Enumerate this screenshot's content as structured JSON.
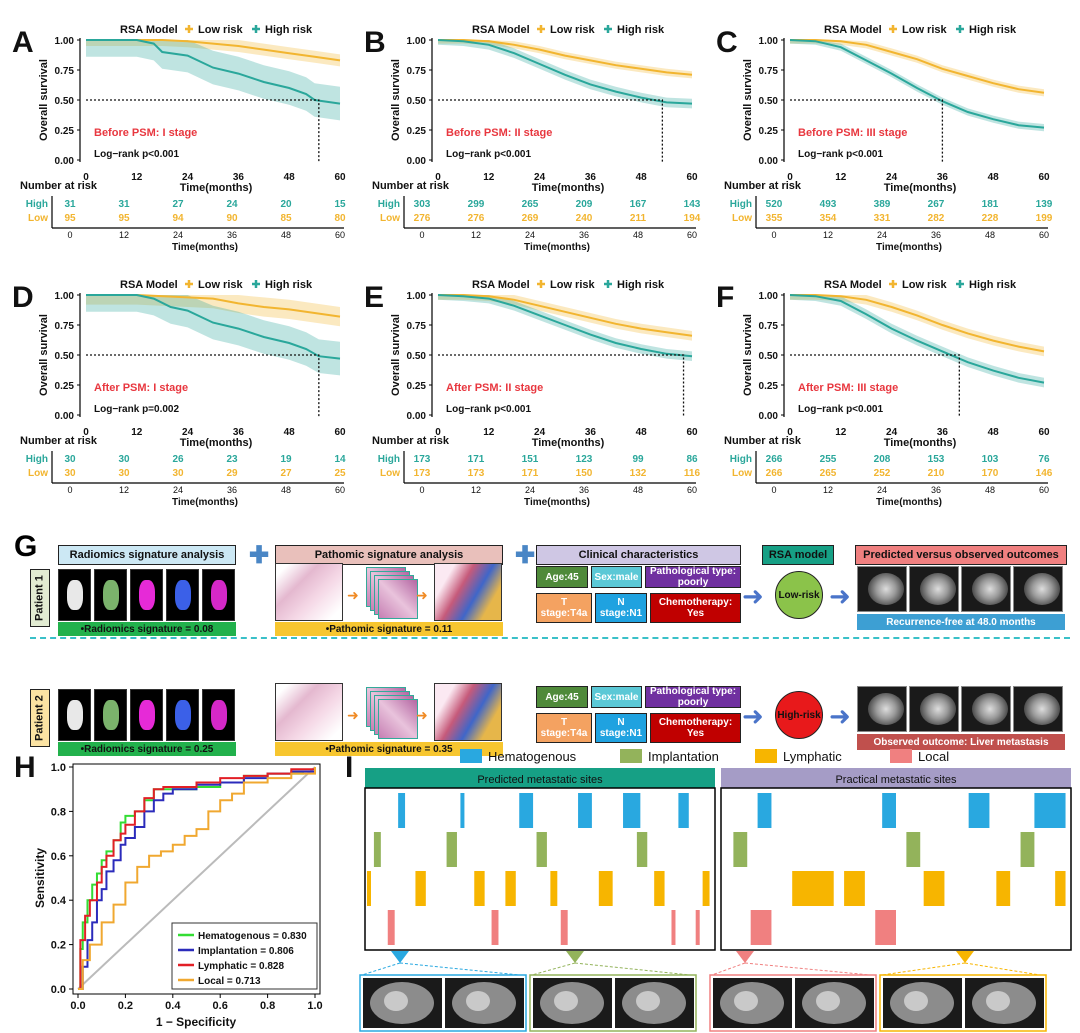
{
  "km_panels": [
    {
      "letter": "A",
      "annotation": "Before PSM: I stage",
      "pvalue": "Log−rank p<0.001",
      "median_x": 55,
      "high_nrisk": [
        "31",
        "31",
        "27",
        "24",
        "20",
        "15"
      ],
      "low_nrisk": [
        "95",
        "95",
        "94",
        "90",
        "85",
        "80"
      ],
      "low_curve": [
        [
          0,
          1.0
        ],
        [
          12,
          1.0
        ],
        [
          18,
          1.0
        ],
        [
          24,
          0.99
        ],
        [
          30,
          0.97
        ],
        [
          36,
          0.95
        ],
        [
          42,
          0.92
        ],
        [
          48,
          0.89
        ],
        [
          54,
          0.86
        ],
        [
          60,
          0.83
        ]
      ],
      "high_curve": [
        [
          0,
          1.0
        ],
        [
          12,
          1.0
        ],
        [
          16,
          0.97
        ],
        [
          18,
          0.9
        ],
        [
          24,
          0.87
        ],
        [
          30,
          0.77
        ],
        [
          36,
          0.72
        ],
        [
          42,
          0.65
        ],
        [
          48,
          0.6
        ],
        [
          52,
          0.55
        ],
        [
          54,
          0.5
        ],
        [
          60,
          0.47
        ]
      ],
      "low_band": 0.05,
      "high_band": 0.14
    },
    {
      "letter": "B",
      "annotation": "Before PSM: II stage",
      "pvalue": "Log−rank p<0.001",
      "median_x": 53,
      "high_nrisk": [
        "303",
        "299",
        "265",
        "209",
        "167",
        "143"
      ],
      "low_nrisk": [
        "276",
        "276",
        "269",
        "240",
        "211",
        "194"
      ],
      "low_curve": [
        [
          0,
          1.0
        ],
        [
          6,
          1.0
        ],
        [
          12,
          0.99
        ],
        [
          18,
          0.96
        ],
        [
          24,
          0.92
        ],
        [
          30,
          0.87
        ],
        [
          36,
          0.83
        ],
        [
          42,
          0.79
        ],
        [
          48,
          0.76
        ],
        [
          54,
          0.73
        ],
        [
          60,
          0.71
        ]
      ],
      "high_curve": [
        [
          0,
          1.0
        ],
        [
          6,
          0.99
        ],
        [
          12,
          0.96
        ],
        [
          18,
          0.89
        ],
        [
          24,
          0.8
        ],
        [
          30,
          0.71
        ],
        [
          36,
          0.63
        ],
        [
          42,
          0.57
        ],
        [
          48,
          0.52
        ],
        [
          54,
          0.48
        ],
        [
          60,
          0.47
        ]
      ],
      "low_band": 0.03,
      "high_band": 0.04
    },
    {
      "letter": "C",
      "annotation": "Before PSM: III stage",
      "pvalue": "Log−rank p<0.001",
      "median_x": 36,
      "high_nrisk": [
        "520",
        "493",
        "389",
        "267",
        "181",
        "139"
      ],
      "low_nrisk": [
        "355",
        "354",
        "331",
        "282",
        "228",
        "199"
      ],
      "low_curve": [
        [
          0,
          1.0
        ],
        [
          6,
          1.0
        ],
        [
          12,
          0.99
        ],
        [
          18,
          0.96
        ],
        [
          24,
          0.9
        ],
        [
          30,
          0.84
        ],
        [
          36,
          0.76
        ],
        [
          42,
          0.7
        ],
        [
          48,
          0.64
        ],
        [
          54,
          0.59
        ],
        [
          60,
          0.56
        ]
      ],
      "high_curve": [
        [
          0,
          1.0
        ],
        [
          6,
          0.99
        ],
        [
          12,
          0.94
        ],
        [
          18,
          0.83
        ],
        [
          24,
          0.72
        ],
        [
          30,
          0.6
        ],
        [
          36,
          0.49
        ],
        [
          42,
          0.4
        ],
        [
          48,
          0.34
        ],
        [
          54,
          0.29
        ],
        [
          60,
          0.27
        ]
      ],
      "low_band": 0.03,
      "high_band": 0.03
    },
    {
      "letter": "D",
      "annotation": "After PSM: I stage",
      "pvalue": "Log−rank p=0.002",
      "median_x": 55,
      "high_nrisk": [
        "30",
        "30",
        "26",
        "23",
        "19",
        "14"
      ],
      "low_nrisk": [
        "30",
        "30",
        "30",
        "29",
        "27",
        "25"
      ],
      "low_curve": [
        [
          0,
          1.0
        ],
        [
          12,
          1.0
        ],
        [
          24,
          0.98
        ],
        [
          30,
          0.97
        ],
        [
          36,
          0.93
        ],
        [
          42,
          0.9
        ],
        [
          48,
          0.88
        ],
        [
          54,
          0.85
        ],
        [
          60,
          0.82
        ]
      ],
      "high_curve": [
        [
          0,
          1.0
        ],
        [
          12,
          1.0
        ],
        [
          16,
          0.97
        ],
        [
          20,
          0.9
        ],
        [
          24,
          0.87
        ],
        [
          30,
          0.77
        ],
        [
          36,
          0.72
        ],
        [
          42,
          0.65
        ],
        [
          48,
          0.6
        ],
        [
          52,
          0.55
        ],
        [
          55,
          0.49
        ],
        [
          60,
          0.47
        ]
      ],
      "low_band": 0.08,
      "high_band": 0.14
    },
    {
      "letter": "E",
      "annotation": "After PSM: II stage",
      "pvalue": "Log−rank p<0.001",
      "median_x": 58,
      "high_nrisk": [
        "173",
        "171",
        "151",
        "123",
        "99",
        "86"
      ],
      "low_nrisk": [
        "173",
        "173",
        "171",
        "150",
        "132",
        "116"
      ],
      "low_curve": [
        [
          0,
          1.0
        ],
        [
          6,
          1.0
        ],
        [
          12,
          0.99
        ],
        [
          18,
          0.96
        ],
        [
          24,
          0.91
        ],
        [
          30,
          0.86
        ],
        [
          36,
          0.81
        ],
        [
          42,
          0.76
        ],
        [
          48,
          0.72
        ],
        [
          54,
          0.69
        ],
        [
          60,
          0.66
        ]
      ],
      "high_curve": [
        [
          0,
          1.0
        ],
        [
          6,
          0.99
        ],
        [
          12,
          0.97
        ],
        [
          18,
          0.91
        ],
        [
          24,
          0.83
        ],
        [
          30,
          0.75
        ],
        [
          36,
          0.67
        ],
        [
          42,
          0.6
        ],
        [
          48,
          0.55
        ],
        [
          54,
          0.51
        ],
        [
          60,
          0.49
        ]
      ],
      "low_band": 0.04,
      "high_band": 0.04
    },
    {
      "letter": "F",
      "annotation": "After PSM: III stage",
      "pvalue": "Log−rank p<0.001",
      "median_x": 40,
      "high_nrisk": [
        "266",
        "255",
        "208",
        "153",
        "103",
        "76"
      ],
      "low_nrisk": [
        "266",
        "265",
        "252",
        "210",
        "170",
        "146"
      ],
      "low_curve": [
        [
          0,
          1.0
        ],
        [
          6,
          1.0
        ],
        [
          12,
          0.99
        ],
        [
          18,
          0.96
        ],
        [
          24,
          0.9
        ],
        [
          30,
          0.83
        ],
        [
          36,
          0.75
        ],
        [
          42,
          0.68
        ],
        [
          48,
          0.62
        ],
        [
          54,
          0.57
        ],
        [
          60,
          0.53
        ]
      ],
      "high_curve": [
        [
          0,
          1.0
        ],
        [
          6,
          0.99
        ],
        [
          12,
          0.95
        ],
        [
          18,
          0.84
        ],
        [
          24,
          0.72
        ],
        [
          30,
          0.62
        ],
        [
          36,
          0.53
        ],
        [
          42,
          0.44
        ],
        [
          48,
          0.37
        ],
        [
          54,
          0.31
        ],
        [
          60,
          0.27
        ]
      ],
      "low_band": 0.04,
      "high_band": 0.04
    }
  ],
  "km_common": {
    "legend_title": "RSA Model",
    "legend_low": "Low risk",
    "legend_high": "High risk",
    "ylabel": "Overall survival",
    "xlabel": "Time(months)",
    "number_at_risk": "Number at risk",
    "high_label": "High",
    "low_label": "Low",
    "yticks": [
      "0.00",
      "0.25",
      "0.50",
      "0.75",
      "1.00"
    ],
    "xticks": [
      "0",
      "12",
      "24",
      "36",
      "48",
      "60"
    ],
    "low_color": "#f2b530",
    "high_color": "#2aa79b",
    "annot_color": "#e8373f"
  },
  "panel_g": {
    "letter": "G",
    "radiomics_title": "Radiomics signature analysis",
    "pathomics_title": "Pathomic signature analysis",
    "clinical_title": "Clinical characteristics",
    "rsa_title": "RSA model",
    "outcome_title": "Predicted versus observed outcomes",
    "plus": "✚",
    "patients": [
      {
        "label": "Patient 1",
        "radiomics": "•Radiomics signature = 0.08",
        "pathomics": "•Pathomic signature = 0.11",
        "age": "Age:45",
        "sex": "Sex:male",
        "path_type": "Pathological type: poorly",
        "t_stage": "T stage:T4a",
        "n_stage": "N stage:N1",
        "chemo": "Chemotherapy: Yes",
        "risk": "Low-risk",
        "risk_color": "#8bc34a",
        "outcome": "Recurrence-free at 48.0 months",
        "outcome_color": "#3d9fd3"
      },
      {
        "label": "Patient 2",
        "radiomics": "•Radiomics signature = 0.25",
        "pathomics": "•Pathomic signature = 0.35",
        "age": "Age:45",
        "sex": "Sex:male",
        "path_type": "Pathological type: poorly",
        "t_stage": "T stage:T4a",
        "n_stage": "N stage:N1",
        "chemo": "Chemotherapy: Yes",
        "risk": "High-risk",
        "risk_color": "#e8191b",
        "outcome": "Observed outcome: Liver metastasis",
        "outcome_color": "#c0504d"
      }
    ]
  },
  "chart_data": [
    {
      "type": "line",
      "panel": "H",
      "title": "",
      "xlabel": "1 − Specificity",
      "ylabel": "Sensitivity",
      "xlim": [
        0,
        1
      ],
      "ylim": [
        0,
        1
      ],
      "xticks": [
        "0.0",
        "0.2",
        "0.4",
        "0.6",
        "0.8",
        "1.0"
      ],
      "yticks": [
        "0.0",
        "0.2",
        "0.4",
        "0.6",
        "0.8",
        "1.0"
      ],
      "series": [
        {
          "name": "Hematogenous = 0.830",
          "color": "#33dd33",
          "x": [
            0,
            0.01,
            0.02,
            0.04,
            0.06,
            0.08,
            0.1,
            0.12,
            0.15,
            0.18,
            0.2,
            0.24,
            0.28,
            0.32,
            0.36,
            0.4,
            0.5,
            0.6,
            0.7,
            0.8,
            0.9,
            0.95,
            1
          ],
          "y": [
            0,
            0.18,
            0.3,
            0.4,
            0.47,
            0.52,
            0.58,
            0.62,
            0.67,
            0.75,
            0.78,
            0.8,
            0.85,
            0.9,
            0.9,
            0.9,
            0.91,
            0.93,
            0.96,
            0.97,
            0.97,
            0.98,
            1
          ]
        },
        {
          "name": "Implantation = 0.806",
          "color": "#2b2bbb",
          "x": [
            0,
            0.02,
            0.04,
            0.06,
            0.08,
            0.1,
            0.12,
            0.15,
            0.18,
            0.2,
            0.24,
            0.28,
            0.32,
            0.36,
            0.4,
            0.5,
            0.6,
            0.7,
            0.8,
            0.9,
            1
          ],
          "y": [
            0,
            0.1,
            0.22,
            0.3,
            0.4,
            0.45,
            0.53,
            0.58,
            0.65,
            0.68,
            0.73,
            0.8,
            0.85,
            0.88,
            0.9,
            0.92,
            0.93,
            0.95,
            0.97,
            0.98,
            1
          ]
        },
        {
          "name": "Lymphatic = 0.828",
          "color": "#e21f26",
          "x": [
            0,
            0.01,
            0.03,
            0.05,
            0.08,
            0.1,
            0.12,
            0.15,
            0.18,
            0.2,
            0.24,
            0.28,
            0.32,
            0.36,
            0.4,
            0.5,
            0.6,
            0.7,
            0.8,
            0.9,
            1
          ],
          "y": [
            0,
            0.22,
            0.33,
            0.4,
            0.48,
            0.55,
            0.6,
            0.67,
            0.7,
            0.74,
            0.8,
            0.86,
            0.9,
            0.91,
            0.91,
            0.93,
            0.95,
            0.96,
            0.97,
            0.99,
            1
          ]
        },
        {
          "name": "Local = 0.713",
          "color": "#f0a830",
          "x": [
            0,
            0.02,
            0.05,
            0.1,
            0.15,
            0.2,
            0.25,
            0.3,
            0.35,
            0.4,
            0.45,
            0.5,
            0.55,
            0.6,
            0.65,
            0.7,
            0.8,
            0.9,
            1
          ],
          "y": [
            0,
            0.13,
            0.2,
            0.3,
            0.38,
            0.48,
            0.55,
            0.6,
            0.62,
            0.65,
            0.69,
            0.72,
            0.8,
            0.85,
            0.88,
            0.93,
            0.95,
            0.97,
            1
          ]
        }
      ]
    },
    {
      "type": "heatmap",
      "panel": "I",
      "legend": [
        {
          "name": "Hematogenous",
          "color": "#29a8e0"
        },
        {
          "name": "Implantation",
          "color": "#93b35b"
        },
        {
          "name": "Lymphatic",
          "color": "#f7b500"
        },
        {
          "name": "Local",
          "color": "#f08080"
        }
      ],
      "predicted_title": "Predicted metastatic sites",
      "practical_title": "Practical metastatic sites",
      "predicted_header_color": "#16a085",
      "practical_header_color": "#a59cc6",
      "predicted": {
        "Hematogenous": [
          [
            9,
            11
          ],
          [
            27,
            28
          ],
          [
            44,
            48
          ],
          [
            61,
            65
          ],
          [
            74,
            79
          ],
          [
            90,
            93
          ]
        ],
        "Implantation": [
          [
            2,
            4
          ],
          [
            23,
            26
          ],
          [
            49,
            52
          ],
          [
            78,
            81
          ]
        ],
        "Lymphatic": [
          [
            0,
            1
          ],
          [
            14,
            17
          ],
          [
            31,
            34
          ],
          [
            40,
            43
          ],
          [
            53,
            55
          ],
          [
            67,
            71
          ],
          [
            83,
            86
          ],
          [
            97,
            99
          ]
        ],
        "Local": [
          [
            6,
            8
          ],
          [
            36,
            38
          ],
          [
            56,
            58
          ],
          [
            88,
            89
          ],
          [
            95,
            96
          ]
        ]
      },
      "practical": {
        "Hematogenous": [
          [
            10,
            14
          ],
          [
            46,
            50
          ],
          [
            71,
            77
          ],
          [
            90,
            99
          ]
        ],
        "Implantation": [
          [
            3,
            7
          ],
          [
            53,
            57
          ],
          [
            86,
            90
          ]
        ],
        "Lymphatic": [
          [
            20,
            32
          ],
          [
            35,
            41
          ],
          [
            58,
            64
          ],
          [
            79,
            83
          ],
          [
            96,
            99
          ]
        ],
        "Local": [
          [
            8,
            14
          ],
          [
            44,
            50
          ]
        ]
      }
    }
  ]
}
